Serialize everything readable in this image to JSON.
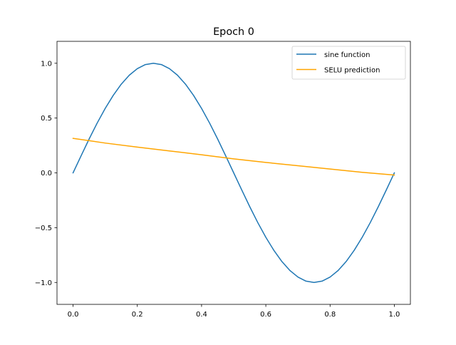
{
  "chart_data": {
    "type": "line",
    "title": "Epoch 0",
    "xlabel": "",
    "ylabel": "",
    "xlim": [
      -0.05,
      1.05
    ],
    "ylim": [
      -1.2,
      1.2
    ],
    "x_ticks": [
      {
        "value": 0.0,
        "label": "0.0"
      },
      {
        "value": 0.2,
        "label": "0.2"
      },
      {
        "value": 0.4,
        "label": "0.4"
      },
      {
        "value": 0.6,
        "label": "0.6"
      },
      {
        "value": 0.8,
        "label": "0.8"
      },
      {
        "value": 1.0,
        "label": "1.0"
      }
    ],
    "y_ticks": [
      {
        "value": -1.0,
        "label": "−1.0"
      },
      {
        "value": -0.5,
        "label": "−0.5"
      },
      {
        "value": 0.0,
        "label": "0.0"
      },
      {
        "value": 0.5,
        "label": "0.5"
      },
      {
        "value": 1.0,
        "label": "1.0"
      }
    ],
    "grid": false,
    "legend_position": "top-right",
    "series": [
      {
        "name": "sine function",
        "color": "#1f77b4",
        "x": [
          0.0,
          0.025,
          0.05,
          0.075,
          0.1,
          0.125,
          0.15,
          0.175,
          0.2,
          0.225,
          0.25,
          0.275,
          0.3,
          0.325,
          0.35,
          0.375,
          0.4,
          0.425,
          0.45,
          0.475,
          0.5,
          0.525,
          0.55,
          0.575,
          0.6,
          0.625,
          0.65,
          0.675,
          0.7,
          0.725,
          0.75,
          0.775,
          0.8,
          0.825,
          0.85,
          0.875,
          0.9,
          0.925,
          0.95,
          0.975,
          1.0
        ],
        "y": [
          0.0,
          0.156,
          0.309,
          0.454,
          0.588,
          0.707,
          0.809,
          0.891,
          0.951,
          0.988,
          1.0,
          0.988,
          0.951,
          0.891,
          0.809,
          0.707,
          0.588,
          0.454,
          0.309,
          0.156,
          0.0,
          -0.156,
          -0.309,
          -0.454,
          -0.588,
          -0.707,
          -0.809,
          -0.891,
          -0.951,
          -0.988,
          -1.0,
          -0.988,
          -0.951,
          -0.891,
          -0.809,
          -0.707,
          -0.588,
          -0.454,
          -0.309,
          -0.156,
          0.0
        ]
      },
      {
        "name": "SELU prediction",
        "color": "#ffa500",
        "x": [
          0.0,
          0.1,
          0.2,
          0.3,
          0.4,
          0.5,
          0.6,
          0.7,
          0.8,
          0.9,
          1.0
        ],
        "y": [
          0.315,
          0.272,
          0.235,
          0.2,
          0.165,
          0.128,
          0.095,
          0.065,
          0.035,
          0.005,
          -0.02
        ]
      }
    ]
  }
}
